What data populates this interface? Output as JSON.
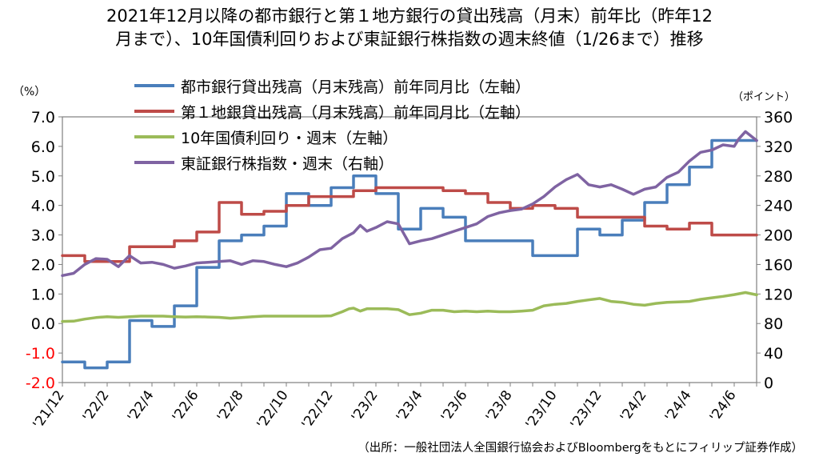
{
  "title_line1": "2021年12月以降の都市銀行と第１地方銀行の貸出残高（月末）前年比（昨年12",
  "title_line2": "月まで）、10年国債利回りおよび東証銀行株指数の週末終値（1/26まで）推移",
  "source": "（出所：一般社団法人全国銀行協会およびBloombergをもとにフィリップ証券作成）",
  "chart_data": {
    "type": "line",
    "title": "2021年12月以降の都市銀行と第１地方銀行の貸出残高（月末）前年比（昨年12月まで）、10年国債利回りおよび東証銀行株指数の週末終値（1/26まで）推移",
    "left_axis": {
      "label": "（%）",
      "ylim": [
        -2.0,
        7.0
      ],
      "ticks": [
        "7.0",
        "6.0",
        "5.0",
        "4.0",
        "3.0",
        "2.0",
        "1.0",
        "0.0",
        "-1.0",
        "-2.0"
      ]
    },
    "right_axis": {
      "label": "（ポイント）",
      "ylim": [
        0,
        360
      ],
      "ticks": [
        "360",
        "320",
        "280",
        "240",
        "200",
        "160",
        "120",
        "80",
        "40",
        "0"
      ]
    },
    "x_ticks": [
      "'21/12",
      "'22/2",
      "'22/4",
      "'22/6",
      "'22/8",
      "'22/10",
      "'22/12",
      "'23/2",
      "'23/4",
      "'23/6",
      "'23/8",
      "'23/10",
      "'23/12",
      "'24/2",
      "'24/4",
      "'24/6"
    ],
    "legend_position": "top-left",
    "grid": false,
    "colors": {
      "red_tick": "#ff0000",
      "frame": "#7f7f7f"
    },
    "series": [
      {
        "name": "都市銀行貸出残高（月末残高）前年同月比（左軸）",
        "axis": "left",
        "color": "#4a7ebb",
        "step": true,
        "x": [
          0,
          1,
          2,
          3,
          4,
          5,
          6,
          7,
          8,
          9,
          10,
          11,
          12,
          13,
          14,
          15,
          16,
          17,
          18,
          19,
          20,
          21,
          22,
          23,
          24,
          25,
          26,
          27,
          28,
          29,
          30
        ],
        "values": [
          -1.3,
          -1.5,
          -1.3,
          0.1,
          -0.1,
          0.6,
          1.9,
          2.8,
          3.0,
          3.3,
          4.4,
          4.0,
          4.6,
          5.0,
          4.4,
          3.2,
          3.9,
          3.6,
          2.8,
          2.8,
          2.8,
          2.3,
          2.3,
          3.2,
          3.0,
          3.5,
          4.1,
          4.7,
          5.3,
          6.2,
          6.2
        ]
      },
      {
        "name": "第１地銀貸出残高（月末残高）前年同月比（左軸）",
        "axis": "left",
        "color": "#be4b48",
        "step": true,
        "x": [
          0,
          1,
          2,
          3,
          4,
          5,
          6,
          7,
          8,
          9,
          10,
          11,
          12,
          13,
          14,
          15,
          16,
          17,
          18,
          19,
          20,
          21,
          22,
          23,
          24,
          25,
          26,
          27,
          28,
          29,
          30
        ],
        "values": [
          2.3,
          2.1,
          2.1,
          2.6,
          2.6,
          2.8,
          3.1,
          4.1,
          3.7,
          3.8,
          4.0,
          4.3,
          4.3,
          4.5,
          4.6,
          4.6,
          4.6,
          4.5,
          4.4,
          4.1,
          3.9,
          4.0,
          3.9,
          3.6,
          3.6,
          3.6,
          3.3,
          3.2,
          3.4,
          3.0,
          3.0
        ]
      },
      {
        "name": "10年国債利回り・週末（左軸）",
        "axis": "left",
        "color": "#9bbb59",
        "x": [
          0,
          0.5,
          1,
          1.5,
          2,
          2.5,
          3,
          3.5,
          4,
          4.5,
          5,
          5.5,
          6,
          6.5,
          7,
          7.5,
          8,
          8.5,
          9,
          9.5,
          10,
          10.5,
          11,
          11.5,
          12,
          12.5,
          12.8,
          13,
          13.3,
          13.6,
          14,
          14.5,
          15,
          15.5,
          16,
          16.5,
          17,
          17.5,
          18,
          18.5,
          19,
          19.5,
          20,
          20.5,
          21,
          21.5,
          22,
          22.5,
          23,
          23.5,
          24,
          24.5,
          25,
          25.5,
          26,
          26.5,
          27,
          27.5,
          28,
          28.5,
          29,
          29.5,
          30,
          30.5,
          31
        ],
        "values": [
          0.07,
          0.08,
          0.15,
          0.2,
          0.23,
          0.21,
          0.23,
          0.25,
          0.25,
          0.25,
          0.23,
          0.22,
          0.23,
          0.22,
          0.21,
          0.18,
          0.2,
          0.23,
          0.25,
          0.25,
          0.25,
          0.25,
          0.25,
          0.25,
          0.26,
          0.4,
          0.5,
          0.52,
          0.42,
          0.5,
          0.5,
          0.5,
          0.47,
          0.3,
          0.35,
          0.45,
          0.45,
          0.4,
          0.42,
          0.4,
          0.42,
          0.4,
          0.4,
          0.42,
          0.45,
          0.6,
          0.65,
          0.68,
          0.75,
          0.8,
          0.85,
          0.75,
          0.72,
          0.65,
          0.62,
          0.68,
          0.72,
          0.73,
          0.75,
          0.82,
          0.87,
          0.92,
          0.98,
          1.05,
          0.97
        ]
      },
      {
        "name": "東証銀行株指数・週末（右軸）",
        "axis": "right",
        "color": "#7f63a2",
        "x": [
          0,
          0.5,
          1,
          1.5,
          2,
          2.5,
          3,
          3.5,
          4,
          4.5,
          5,
          5.5,
          6,
          6.5,
          7,
          7.5,
          8,
          8.5,
          9,
          9.5,
          10,
          10.5,
          11,
          11.5,
          12,
          12.5,
          13,
          13.3,
          13.6,
          14,
          14.5,
          15,
          15.5,
          16,
          16.5,
          17,
          17.5,
          18,
          18.5,
          19,
          19.5,
          20,
          20.5,
          21,
          21.5,
          22,
          22.5,
          23,
          23.5,
          24,
          24.5,
          25,
          25.5,
          26,
          26.5,
          27,
          27.5,
          28,
          28.5,
          29,
          29.5,
          30,
          30.2,
          30.5,
          31
        ],
        "values": [
          145,
          148,
          160,
          168,
          167,
          157,
          172,
          162,
          163,
          160,
          155,
          158,
          162,
          163,
          164,
          165,
          160,
          165,
          164,
          160,
          157,
          162,
          170,
          180,
          182,
          195,
          203,
          213,
          205,
          210,
          218,
          215,
          188,
          192,
          195,
          200,
          205,
          210,
          215,
          225,
          230,
          233,
          235,
          242,
          252,
          265,
          275,
          282,
          268,
          265,
          268,
          262,
          255,
          262,
          265,
          278,
          285,
          300,
          312,
          315,
          322,
          320,
          330,
          340,
          328
        ]
      }
    ]
  }
}
